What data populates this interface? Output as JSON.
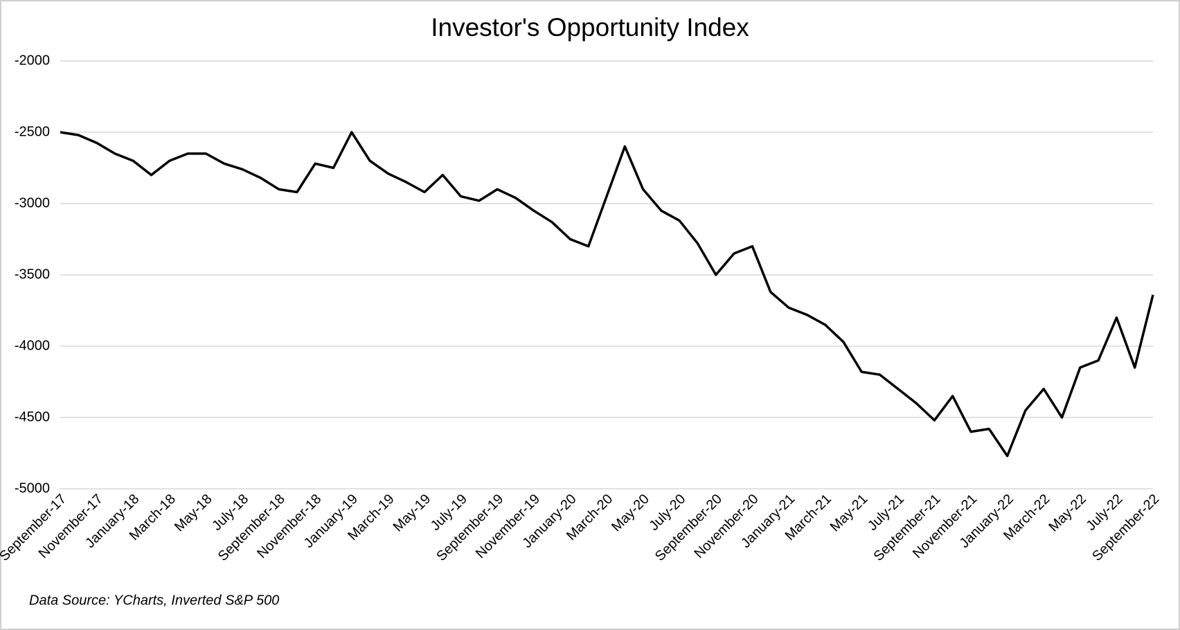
{
  "chart_data": {
    "type": "line",
    "title": "Investor's Opportunity Index",
    "footnote": "Data Source: YCharts, Inverted S&P 500",
    "categories": [
      "September-17",
      null,
      "November-17",
      null,
      "January-18",
      null,
      "March-18",
      null,
      "May-18",
      null,
      "July-18",
      null,
      "September-18",
      null,
      "November-18",
      null,
      "January-19",
      null,
      "March-19",
      null,
      "May-19",
      null,
      "July-19",
      null,
      "September-19",
      null,
      "November-19",
      null,
      "January-20",
      null,
      "March-20",
      null,
      "May-20",
      null,
      "July-20",
      null,
      "September-20",
      null,
      "November-20",
      null,
      "January-21",
      null,
      "March-21",
      null,
      "May-21",
      null,
      "July-21",
      null,
      "September-21",
      null,
      "November-21",
      null,
      "January-22",
      null,
      "March-22",
      null,
      "May-22",
      null,
      "July-22",
      null,
      "September-22"
    ],
    "series": [
      {
        "name": "Investor's Opportunity Index",
        "color": "#000000",
        "values": [
          -2500,
          -2520,
          -2575,
          -2650,
          -2700,
          -2800,
          -2700,
          -2650,
          -2650,
          -2720,
          -2760,
          -2820,
          -2900,
          -2920,
          -2720,
          -2750,
          -2500,
          -2700,
          -2790,
          -2850,
          -2920,
          -2800,
          -2950,
          -2980,
          -2900,
          -2960,
          -3050,
          -3130,
          -3250,
          -3300,
          -2950,
          -2600,
          -2900,
          -3050,
          -3120,
          -3280,
          -3500,
          -3350,
          -3300,
          -3620,
          -3730,
          -3780,
          -3850,
          -3970,
          -4180,
          -4200,
          -4300,
          -4400,
          -4520,
          -4350,
          -4600,
          -4580,
          -4770,
          -4450,
          -4300,
          -4500,
          -4150,
          -4100,
          -3800,
          -4150,
          -3640
        ]
      }
    ],
    "ylim": [
      -5000,
      -2000
    ],
    "yticks": [
      -2000,
      -2500,
      -3000,
      -3500,
      -4000,
      -4500,
      -5000
    ],
    "grid": true
  }
}
